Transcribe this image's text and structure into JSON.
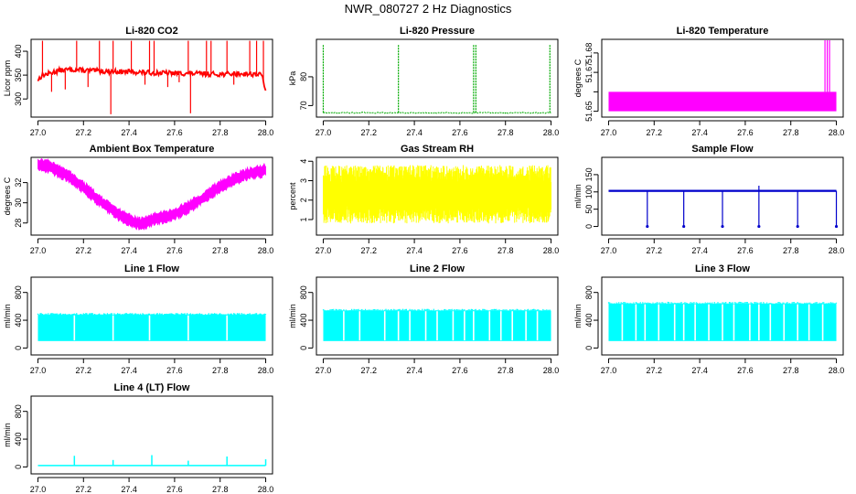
{
  "figure": {
    "title": "NWR_080727  2 Hz Diagnostics"
  },
  "chart_data": [
    {
      "id": "co2",
      "type": "line",
      "title": "Li-820 CO2",
      "ylabel": "Licor ppm",
      "color": "#ff0000",
      "xlim": [
        26.97,
        28.03
      ],
      "ylim": [
        262,
        425
      ],
      "xticks": [
        "27.0",
        "27.2",
        "27.4",
        "27.6",
        "27.8",
        "28.0"
      ],
      "yticks": [
        300,
        350,
        400
      ],
      "x": [
        27.0,
        27.02,
        27.04,
        27.06,
        27.08,
        27.1,
        27.15,
        27.2,
        27.3,
        27.4,
        27.5,
        27.6,
        27.7,
        27.8,
        27.9,
        27.95,
        27.98,
        27.99,
        28.0
      ],
      "y": [
        340,
        350,
        352,
        355,
        358,
        360,
        362,
        360,
        358,
        357,
        355,
        354,
        353,
        352,
        353,
        352,
        351,
        340,
        315
      ],
      "spikes_up": [
        27.02,
        27.17,
        27.27,
        27.33,
        27.41,
        27.49,
        27.51,
        27.66,
        27.74,
        27.76,
        27.83,
        27.93,
        27.96,
        27.99
      ],
      "spikes_up_peak": 422,
      "spikes_down": [
        27.06,
        27.12,
        27.22,
        27.32,
        27.47,
        27.57,
        27.62,
        27.67,
        27.86
      ],
      "spikes_down_min": [
        315,
        320,
        325,
        268,
        330,
        325,
        335,
        270,
        330
      ]
    },
    {
      "id": "pressure",
      "type": "line",
      "title": "Li-820 Pressure",
      "ylabel": "kPa",
      "color": "#00aa00",
      "xlim": [
        26.97,
        28.03
      ],
      "ylim": [
        66,
        93
      ],
      "xticks": [
        "27.0",
        "27.2",
        "27.4",
        "27.6",
        "27.8",
        "28.0"
      ],
      "yticks": [
        70,
        80
      ],
      "baseline": 67.5,
      "spikes_up": [
        27.0,
        27.33,
        27.66,
        27.67,
        27.995
      ],
      "spikes_up_peak": 91
    },
    {
      "id": "temp",
      "type": "area",
      "title": "Li-820 Temperature",
      "ylabel": "degrees C",
      "color": "#ff00ff",
      "xlim": [
        26.97,
        28.03
      ],
      "ylim": [
        51.647,
        51.687
      ],
      "xticks": [
        "27.0",
        "27.2",
        "27.4",
        "27.6",
        "27.8",
        "28.0"
      ],
      "yticks": [
        51.65,
        51.66,
        51.67,
        51.68
      ],
      "yticklabels": [
        "51.65",
        "",
        "51.67",
        "51.68"
      ],
      "band": [
        51.65,
        51.66
      ],
      "spikes_up": [
        27.95,
        27.96,
        27.97
      ],
      "spikes_up_peak": 51.69
    },
    {
      "id": "ambient",
      "type": "line",
      "title": "Ambient Box Temperature",
      "ylabel": "degrees C",
      "color": "#ff00ff",
      "xlim": [
        26.97,
        28.03
      ],
      "ylim": [
        26.8,
        34.5
      ],
      "xticks": [
        "27.0",
        "27.2",
        "27.4",
        "27.6",
        "27.8",
        "28.0"
      ],
      "yticks": [
        28,
        30,
        32
      ],
      "x": [
        27.0,
        27.05,
        27.1,
        27.15,
        27.2,
        27.25,
        27.3,
        27.35,
        27.4,
        27.45,
        27.5,
        27.55,
        27.6,
        27.65,
        27.7,
        27.75,
        27.8,
        27.85,
        27.9,
        27.95,
        28.0
      ],
      "y": [
        33.8,
        33.6,
        33.0,
        32.4,
        31.5,
        30.6,
        29.7,
        28.9,
        28.3,
        27.9,
        28.3,
        28.6,
        28.9,
        29.4,
        30.1,
        30.9,
        31.6,
        32.2,
        32.7,
        33.0,
        33.2
      ],
      "band_width": 0.6
    },
    {
      "id": "rh",
      "type": "area",
      "title": "Gas Stream RH",
      "ylabel": "percent",
      "color": "#ffff00",
      "xlim": [
        26.97,
        28.03
      ],
      "ylim": [
        0.2,
        4.2
      ],
      "xticks": [
        "27.0",
        "27.2",
        "27.4",
        "27.6",
        "27.8",
        "28.0"
      ],
      "yticks": [
        1,
        2,
        3,
        4
      ],
      "range": [
        0.8,
        3.8
      ]
    },
    {
      "id": "sample",
      "type": "line",
      "title": "Sample Flow",
      "ylabel": "ml/min",
      "color": "#0000cc",
      "xlim": [
        26.97,
        28.03
      ],
      "ylim": [
        -25,
        200
      ],
      "xticks": [
        "27.0",
        "27.2",
        "27.4",
        "27.6",
        "27.8",
        "28.0"
      ],
      "yticks": [
        0,
        50,
        100,
        150
      ],
      "baseline": 103,
      "spikes_down": [
        27.17,
        27.33,
        27.5,
        27.66,
        27.83,
        28.0
      ],
      "spikes_down_min": 0,
      "spikes_up": [
        27.66
      ],
      "spikes_up_peak": 118
    },
    {
      "id": "line1",
      "type": "area",
      "title": "Line 1 Flow",
      "ylabel": "ml/min",
      "color": "#00ffff",
      "xlim": [
        26.97,
        28.03
      ],
      "ylim": [
        -100,
        1020
      ],
      "xticks": [
        "27.0",
        "27.2",
        "27.4",
        "27.6",
        "27.8",
        "28.0"
      ],
      "yticks": [
        0,
        400,
        800
      ],
      "range": [
        100,
        480
      ],
      "gaps": [
        27.16,
        27.33,
        27.49,
        27.66,
        27.83
      ]
    },
    {
      "id": "line2",
      "type": "area",
      "title": "Line 2 Flow",
      "ylabel": "ml/min",
      "color": "#00ffff",
      "xlim": [
        26.97,
        28.03
      ],
      "ylim": [
        -100,
        1020
      ],
      "xticks": [
        "27.0",
        "27.2",
        "27.4",
        "27.6",
        "27.8",
        "28.0"
      ],
      "yticks": [
        0,
        400,
        800
      ],
      "range": [
        100,
        540
      ],
      "gaps": [
        27.09,
        27.16,
        27.27,
        27.33,
        27.38,
        27.45,
        27.5,
        27.57,
        27.62,
        27.66,
        27.73,
        27.78,
        27.83,
        27.89,
        27.94
      ]
    },
    {
      "id": "line3",
      "type": "area",
      "title": "Line 3 Flow",
      "ylabel": "ml/min",
      "color": "#00ffff",
      "xlim": [
        26.97,
        28.03
      ],
      "ylim": [
        -100,
        1020
      ],
      "xticks": [
        "27.0",
        "27.2",
        "27.4",
        "27.6",
        "27.8",
        "28.0"
      ],
      "yticks": [
        0,
        400,
        800
      ],
      "range": [
        100,
        640
      ],
      "gaps": [
        27.06,
        27.12,
        27.16,
        27.22,
        27.29,
        27.33,
        27.38,
        27.44,
        27.5,
        27.55,
        27.62,
        27.66,
        27.71,
        27.77,
        27.83,
        27.88,
        27.94
      ]
    },
    {
      "id": "line4",
      "type": "line",
      "title": "Line 4 (LT) Flow",
      "ylabel": "ml/min",
      "color": "#00ffff",
      "xlim": [
        26.97,
        28.03
      ],
      "ylim": [
        -100,
        1020
      ],
      "xticks": [
        "27.0",
        "27.2",
        "27.4",
        "27.6",
        "27.8",
        "28.0"
      ],
      "yticks": [
        0,
        400,
        800
      ],
      "baseline": 20,
      "spikes_up": [
        27.16,
        27.33,
        27.5,
        27.66,
        27.83,
        28.0
      ],
      "spikes_up_peaks": [
        160,
        100,
        170,
        90,
        150,
        110
      ]
    }
  ]
}
